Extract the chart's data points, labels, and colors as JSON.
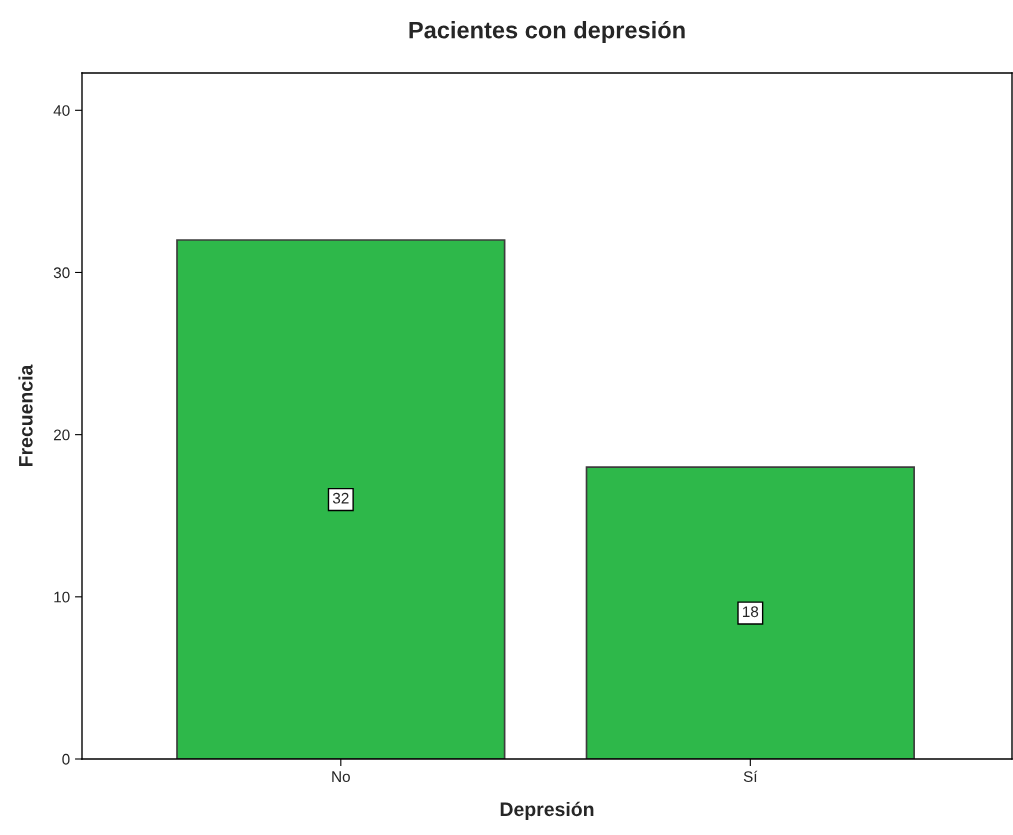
{
  "chart_data": {
    "type": "bar",
    "title": "Pacientes con depresión",
    "xlabel": "Depresión",
    "ylabel": "Frecuencia",
    "categories": [
      "No",
      "Sí"
    ],
    "values": [
      32,
      18
    ],
    "color": "#2eb84a",
    "ylim": [
      0,
      42.3
    ],
    "yticks": [
      0,
      10,
      20,
      30,
      40
    ],
    "data_labels": true,
    "grid": false,
    "legend": false
  }
}
